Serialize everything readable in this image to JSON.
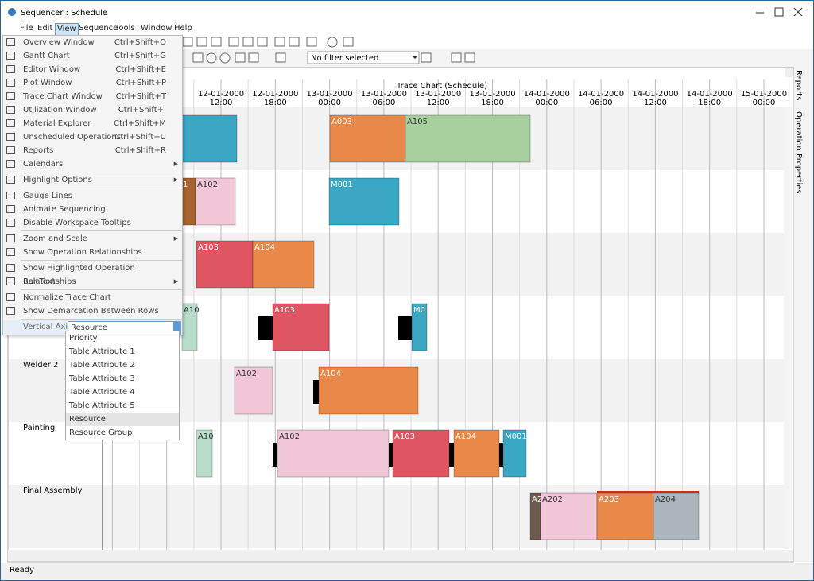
{
  "window": {
    "title": "Sequencer : Schedule"
  },
  "menubar": {
    "items": [
      "File",
      "Edit",
      "View",
      "Sequence",
      "Tools",
      "Window",
      "Help"
    ]
  },
  "toolbar": {
    "filter": "No filter selected"
  },
  "chart": {
    "title": "Trace Chart (Schedule)",
    "time_labels": [
      {
        "date": "12-01-2000",
        "time": "12:00"
      },
      {
        "date": "12-01-2000",
        "time": "18:00"
      },
      {
        "date": "13-01-2000",
        "time": "00:00"
      },
      {
        "date": "13-01-2000",
        "time": "06:00"
      },
      {
        "date": "13-01-2000",
        "time": "12:00"
      },
      {
        "date": "13-01-2000",
        "time": "18:00"
      },
      {
        "date": "14-01-2000",
        "time": "00:00"
      },
      {
        "date": "14-01-2000",
        "time": "06:00"
      },
      {
        "date": "14-01-2000",
        "time": "12:00"
      },
      {
        "date": "14-01-2000",
        "time": "18:00"
      },
      {
        "date": "15-01-2000",
        "time": "00:00"
      }
    ],
    "rows": [
      "Welder 2",
      "Painting",
      "Final Assembly"
    ],
    "bars": [
      "A003",
      "A105",
      "1",
      "A102",
      "M001",
      "A103",
      "A104",
      "A10",
      "A103",
      "M0",
      "A102",
      "A104",
      "A10",
      "A102",
      "A103",
      "A104",
      "M001",
      "A2",
      "A202",
      "A203",
      "A204"
    ]
  },
  "menu": {
    "groups": [
      [
        {
          "label": "Overview Window",
          "shortcut": "Ctrl+Shift+O"
        },
        {
          "label": "Gantt Chart",
          "shortcut": "Ctrl+Shift+G"
        },
        {
          "label": "Editor Window",
          "shortcut": "Ctrl+Shift+E"
        },
        {
          "label": "Plot Window",
          "shortcut": "Ctrl+Shift+P"
        },
        {
          "label": "Trace Chart Window",
          "shortcut": "Ctrl+Shift+T"
        },
        {
          "label": "Utilization Window",
          "shortcut": "Ctrl+Shift+I"
        },
        {
          "label": "Material Explorer",
          "shortcut": "Ctrl+Shift+M"
        },
        {
          "label": "Unscheduled Operations",
          "shortcut": "Ctrl+Shift+U"
        },
        {
          "label": "Reports",
          "shortcut": "Ctrl+Shift+R"
        },
        {
          "label": "Calendars",
          "submenu": true
        }
      ],
      [
        {
          "label": "Highlight Options",
          "submenu": true
        }
      ],
      [
        {
          "label": "Gauge Lines"
        },
        {
          "label": "Animate Sequencing"
        },
        {
          "label": "Disable Workspace Tooltips"
        }
      ],
      [
        {
          "label": "Zoom and Scale",
          "submenu": true
        },
        {
          "label": "Show Operation Relationships"
        }
      ],
      [
        {
          "label": "Show Highlighted Operation Relationships"
        },
        {
          "label": "Bar Text",
          "submenu": true
        }
      ],
      [
        {
          "label": "Normalize Trace Chart"
        },
        {
          "label": "Show Demarcation Between Rows"
        }
      ]
    ]
  },
  "vertical_axis": {
    "label": "Vertical Axis",
    "value": "Resource",
    "options": [
      "Priority",
      "Table Attribute 1",
      "Table Attribute 2",
      "Table Attribute 3",
      "Table Attribute 4",
      "Table Attribute 5",
      "Resource",
      "Resource Group"
    ],
    "selected": 6
  },
  "side_tabs": [
    "Reports",
    "Operation Properties"
  ],
  "status": "Ready"
}
